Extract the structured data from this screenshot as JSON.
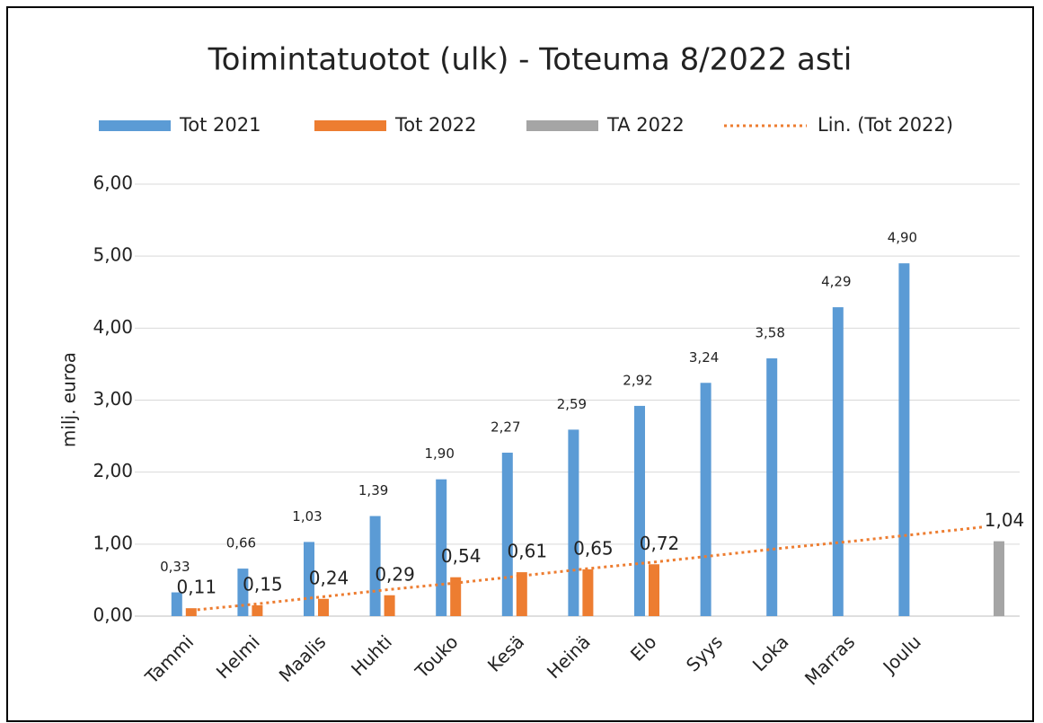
{
  "chart_data": {
    "type": "bar",
    "title": "Toimintatuotot (ulk) - Toteuma 8/2022 asti",
    "y_label": "milj. euroa",
    "categories": [
      "Tammi",
      "Helmi",
      "Maalis",
      "Huhti",
      "Touko",
      "Kesä",
      "Heinä",
      "Elo",
      "Syys",
      "Loka",
      "Marras",
      "Joulu",
      null
    ],
    "series": [
      {
        "name": "Tot 2021",
        "color": "#5b9bd5",
        "type": "bar",
        "values": [
          0.33,
          0.66,
          1.03,
          1.39,
          1.9,
          2.27,
          2.59,
          2.92,
          3.24,
          3.58,
          4.29,
          4.9,
          null
        ],
        "value_labels": [
          "0,33",
          "0,66",
          "1,03",
          "1,39",
          "1,90",
          "2,27",
          "2,59",
          "2,92",
          "3,24",
          "3,58",
          "4,29",
          "4,90",
          null
        ]
      },
      {
        "name": "Tot 2022",
        "color": "#ed7d31",
        "type": "bar",
        "values": [
          0.11,
          0.15,
          0.24,
          0.29,
          0.54,
          0.61,
          0.65,
          0.72,
          null,
          null,
          null,
          null,
          null
        ],
        "value_labels": [
          "0,11",
          "0,15",
          "0,24",
          "0,29",
          "0,54",
          "0,61",
          "0,65",
          "0,72",
          null,
          null,
          null,
          null,
          null
        ]
      },
      {
        "name": "TA 2022",
        "color": "#a5a5a5",
        "type": "bar",
        "values": [
          null,
          null,
          null,
          null,
          null,
          null,
          null,
          null,
          null,
          null,
          null,
          null,
          1.04
        ],
        "value_labels": [
          null,
          null,
          null,
          null,
          null,
          null,
          null,
          null,
          null,
          null,
          null,
          null,
          "1,04"
        ]
      },
      {
        "name": "Lin. (Tot 2022)",
        "color": "#ed7d31",
        "type": "trendline",
        "dotted": true,
        "values": [
          0.08,
          0.17,
          0.27,
          0.37,
          0.46,
          0.56,
          0.66,
          0.75,
          0.85,
          0.95,
          1.04,
          1.14,
          1.24
        ]
      }
    ],
    "ylim": [
      0,
      6
    ],
    "yticks": [
      {
        "value": 0,
        "label": "0,00"
      },
      {
        "value": 1,
        "label": "1,00"
      },
      {
        "value": 2,
        "label": "2,00"
      },
      {
        "value": 3,
        "label": "3,00"
      },
      {
        "value": 4,
        "label": "4,00"
      },
      {
        "value": 5,
        "label": "5,00"
      },
      {
        "value": 6,
        "label": "6,00"
      }
    ],
    "grid": true,
    "legend": "top"
  }
}
